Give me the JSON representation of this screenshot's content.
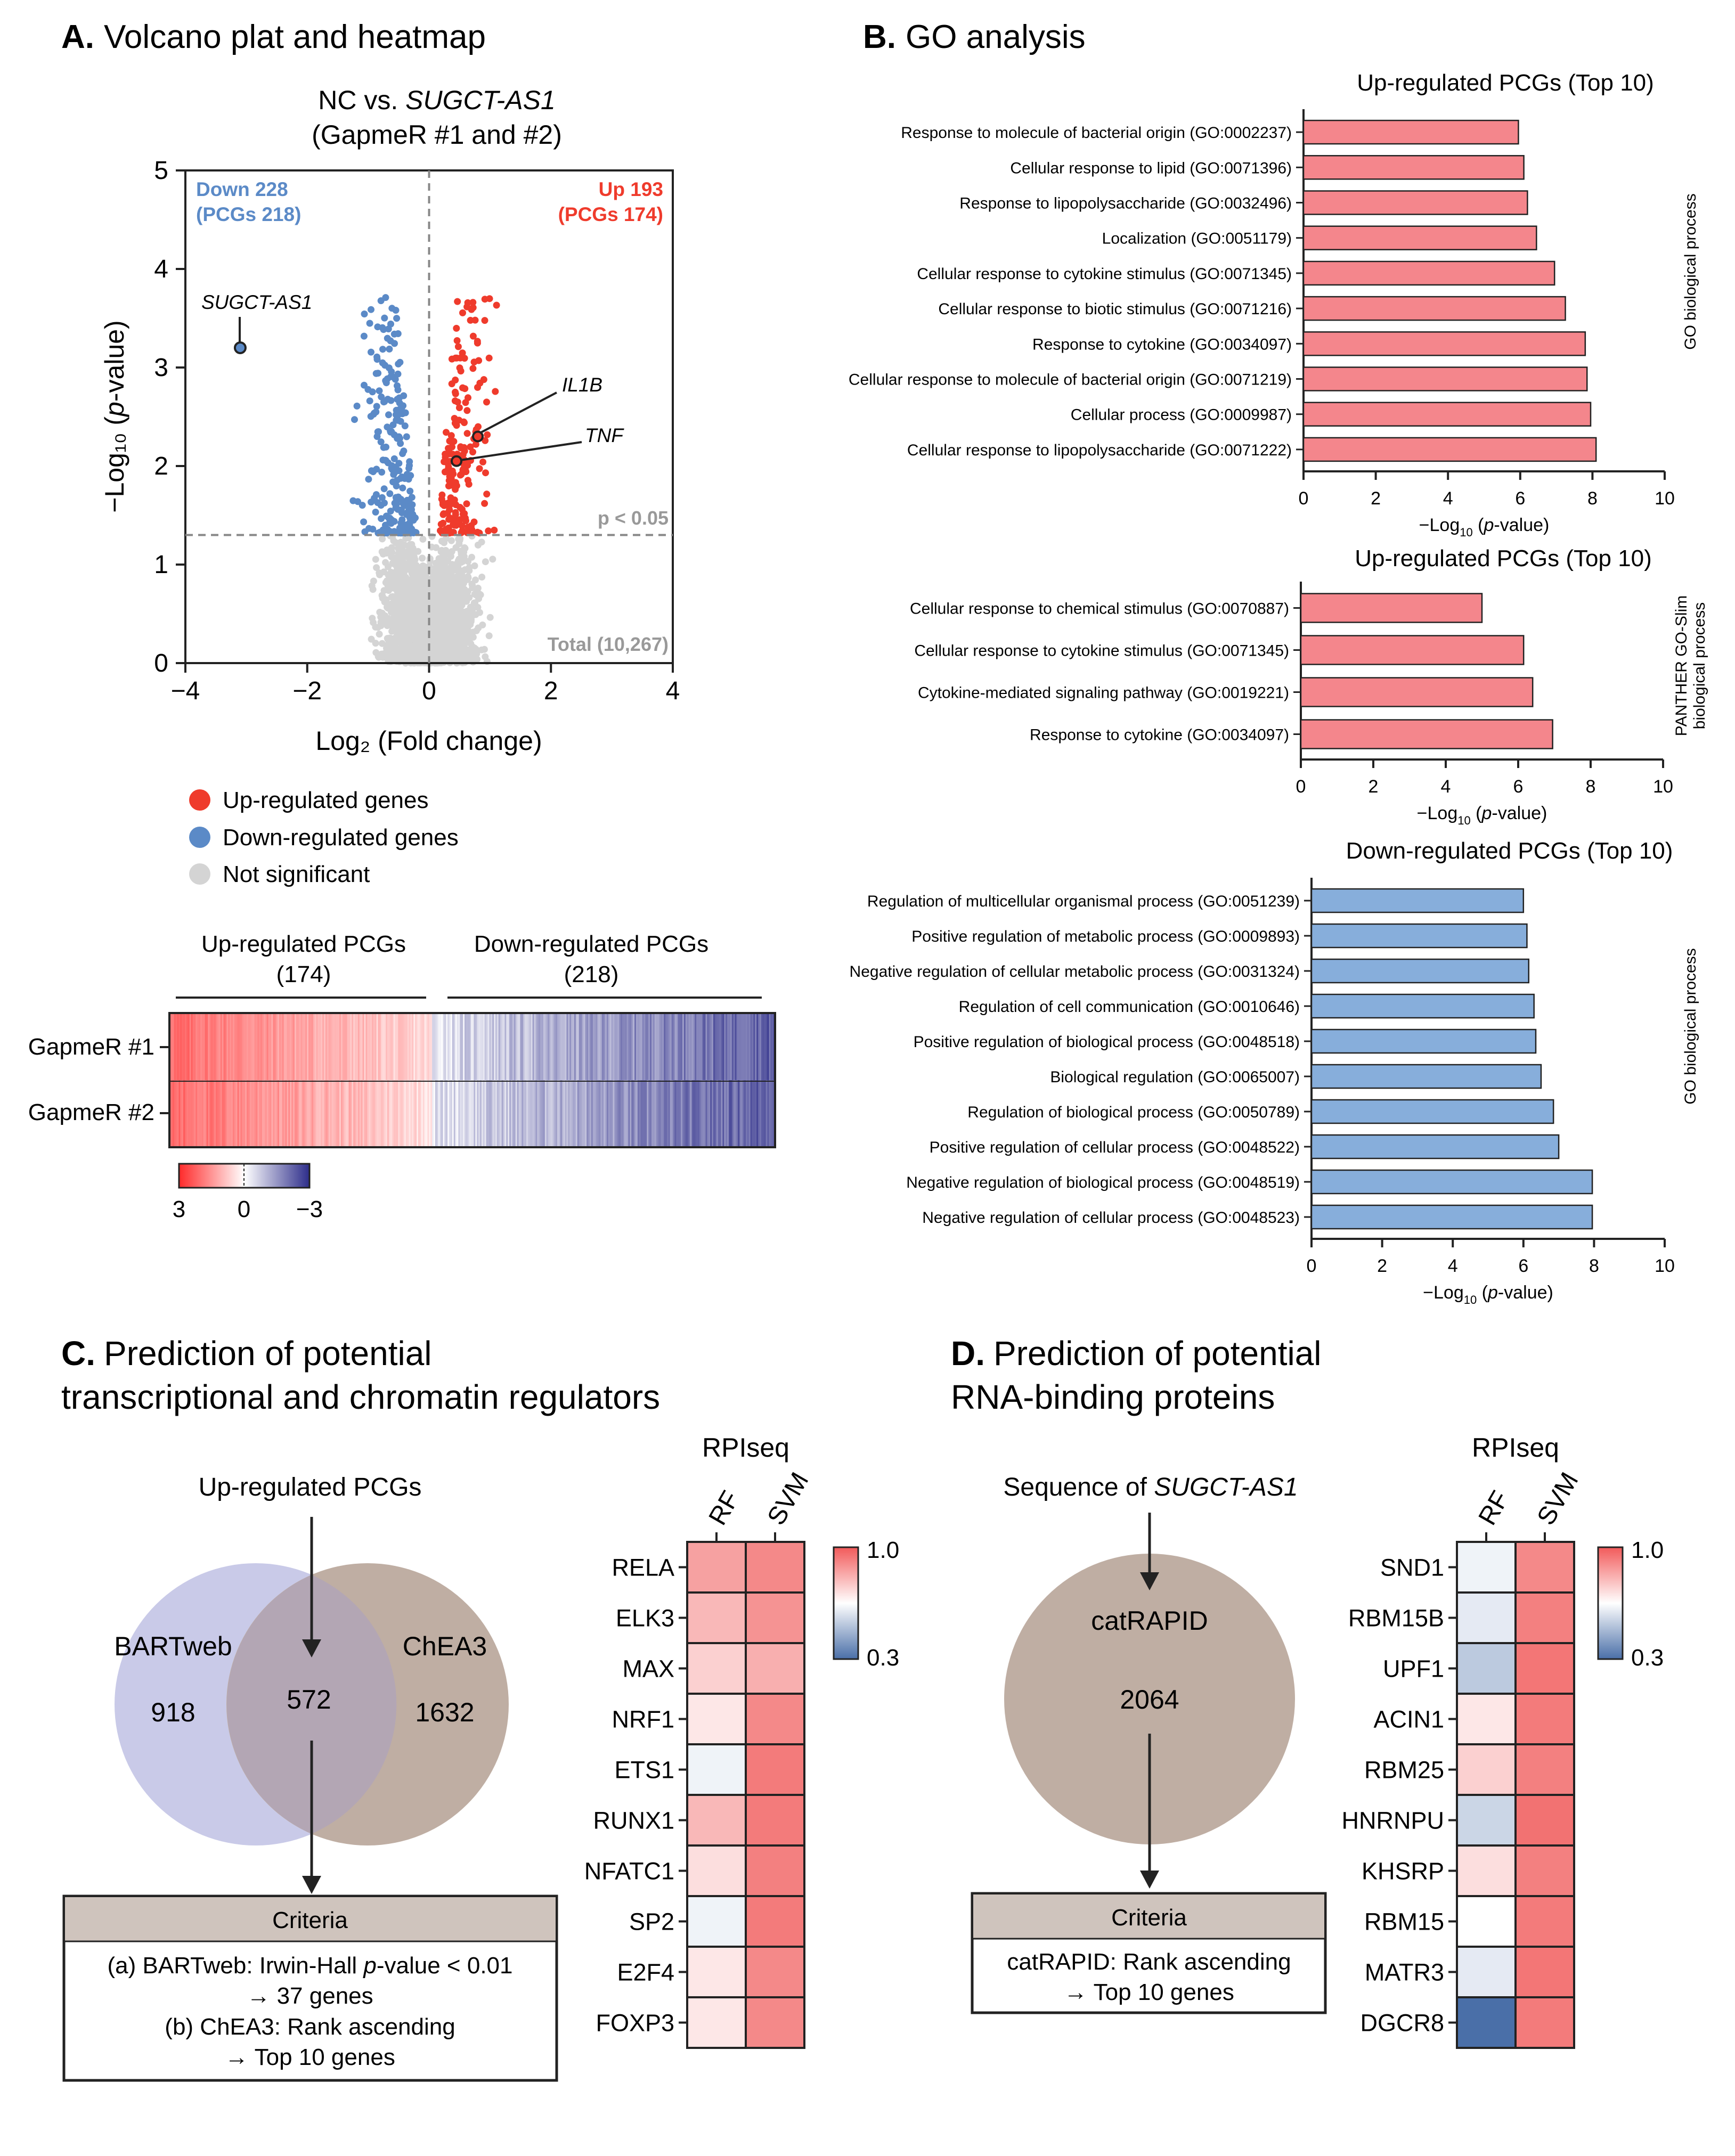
{
  "colors": {
    "up": "#ef3b2c",
    "down": "#5b8ac7",
    "ns": "#d4d4d4",
    "up_bar": "#f4868c",
    "down_bar": "#87aedb",
    "venn_left": "#c9cae8",
    "venn_right": "#bfaea3",
    "venn_mid": "#b3a6b4",
    "criteria_header": "#cfc4bd",
    "heat_high": "#f05060",
    "heat_low": "#3f3f95"
  },
  "panelA": {
    "letter": "A.",
    "title": "Volcano plat and heatmap",
    "subtitle_prefix": "NC vs. ",
    "subtitle_gene": "SUGCT-AS1",
    "subtitle_line2": "(GapmeR #1 and #2)",
    "down_label": "Down 228",
    "down_sub": "(PCGs 218)",
    "up_label": "Up 193",
    "up_sub": "(PCGs 174)",
    "p_label": "p < 0.05",
    "total_label": "Total (10,267)",
    "gene_labels": [
      "SUGCT-AS1",
      "IL1B",
      "TNF"
    ],
    "legend": [
      "Up-regulated genes",
      "Down-regulated genes",
      "Not significant"
    ],
    "heatmap": {
      "col1": "Up-regulated PCGs",
      "col1_n": "(174)",
      "col2": "Down-regulated PCGs",
      "col2_n": "(218)",
      "rows": [
        "GapmeR #1",
        "GapmeR #2"
      ],
      "scale": [
        "3",
        "0",
        "−3"
      ]
    }
  },
  "chart_data": [
    {
      "type": "scatter",
      "title": "NC vs. SUGCT-AS1 (GapmeR #1 and #2)",
      "xlabel": "Log₂ (Fold change)",
      "ylabel": "−Log₁₀ (p-value)",
      "xlim": [
        -4,
        4
      ],
      "ylim": [
        0,
        5
      ],
      "xticks": [
        "−4",
        "−2",
        "0",
        "2",
        "4"
      ],
      "yticks": [
        "0",
        "1",
        "2",
        "3",
        "4",
        "5"
      ],
      "highlighted": [
        {
          "gene": "SUGCT-AS1",
          "x": -3.1,
          "y": 3.2
        },
        {
          "gene": "IL1B",
          "x": 0.8,
          "y": 2.3
        },
        {
          "gene": "TNF",
          "x": 0.45,
          "y": 2.05
        }
      ],
      "series": [
        {
          "name": "Up-regulated genes",
          "count": 193
        },
        {
          "name": "Down-regulated genes",
          "count": 228
        },
        {
          "name": "Not significant"
        }
      ],
      "threshold": {
        "y": 1.3,
        "label": "p < 0.05"
      },
      "total": 10267
    },
    {
      "type": "bar",
      "orientation": "horizontal",
      "title": "Up-regulated PCGs (Top 10)",
      "side_label": "GO biological process",
      "xlabel": "−Log10 (p-value)",
      "xlim": [
        0,
        10
      ],
      "xticks": [
        "0",
        "2",
        "4",
        "6",
        "8",
        "10"
      ],
      "categories": [
        "Response to molecule of bacterial origin (GO:0002237)",
        "Cellular response to lipid (GO:0071396)",
        "Response to lipopolysaccharide (GO:0032496)",
        "Localization (GO:0051179)",
        "Cellular response to cytokine stimulus (GO:0071345)",
        "Cellular response to biotic stimulus (GO:0071216)",
        "Response to cytokine (GO:0034097)",
        "Cellular response to molecule of bacterial origin (GO:0071219)",
        "Cellular process (GO:0009987)",
        "Cellular response to lipopolysaccharide (GO:0071222)"
      ],
      "values": [
        5.95,
        6.1,
        6.2,
        6.45,
        6.95,
        7.25,
        7.8,
        7.85,
        7.95,
        8.1
      ]
    },
    {
      "type": "bar",
      "orientation": "horizontal",
      "title": "Up-regulated PCGs (Top 10)",
      "side_label": "PANTHER GO-Slim biological process",
      "xlabel": "−Log10 (p-value)",
      "xlim": [
        0,
        10
      ],
      "xticks": [
        "0",
        "2",
        "4",
        "6",
        "8",
        "10"
      ],
      "categories": [
        "Cellular response to chemical stimulus (GO:0070887)",
        "Cellular response to cytokine stimulus (GO:0071345)",
        "Cytokine-mediated signaling pathway (GO:0019221)",
        "Response to cytokine (GO:0034097)"
      ],
      "values": [
        5.0,
        6.15,
        6.4,
        6.95
      ]
    },
    {
      "type": "bar",
      "orientation": "horizontal",
      "title": "Down-regulated PCGs (Top 10)",
      "side_label": "GO biological process",
      "xlabel": "−Log10 (p-value)",
      "xlim": [
        0,
        10
      ],
      "xticks": [
        "0",
        "2",
        "4",
        "6",
        "8",
        "10"
      ],
      "categories": [
        "Regulation of multicellular organismal process (GO:0051239)",
        "Positive regulation of metabolic process (GO:0009893)",
        "Negative regulation of cellular metabolic process (GO:0031324)",
        "Regulation of cell communication (GO:0010646)",
        "Positive regulation of biological process (GO:0048518)",
        "Biological regulation (GO:0065007)",
        "Regulation of biological process (GO:0050789)",
        "Positive regulation of cellular process (GO:0048522)",
        "Negative regulation of biological process (GO:0048519)",
        "Negative regulation of cellular process (GO:0048523)"
      ],
      "values": [
        6.0,
        6.1,
        6.15,
        6.3,
        6.35,
        6.5,
        6.85,
        7.0,
        7.95,
        7.95
      ]
    },
    {
      "type": "heatmap",
      "title": "RPIseq",
      "panel": "C",
      "columns": [
        "RF",
        "SVM"
      ],
      "rows": [
        "RELA",
        "ELK3",
        "MAX",
        "NRF1",
        "ETS1",
        "RUNX1",
        "NFATC1",
        "SP2",
        "E2F4",
        "FOXP3"
      ],
      "values": [
        [
          0.85,
          0.9
        ],
        [
          0.8,
          0.88
        ],
        [
          0.75,
          0.82
        ],
        [
          0.7,
          0.9
        ],
        [
          0.62,
          0.93
        ],
        [
          0.8,
          0.93
        ],
        [
          0.72,
          0.92
        ],
        [
          0.62,
          0.93
        ],
        [
          0.7,
          0.9
        ],
        [
          0.7,
          0.9
        ]
      ],
      "scale": {
        "max": "1.0",
        "min": "0.3"
      }
    },
    {
      "type": "heatmap",
      "title": "RPIseq",
      "panel": "D",
      "columns": [
        "RF",
        "SVM"
      ],
      "rows": [
        "SND1",
        "RBM15B",
        "UPF1",
        "ACIN1",
        "RBM25",
        "HNRNPU",
        "KHSRP",
        "RBM15",
        "MATR3",
        "DGCR8"
      ],
      "values": [
        [
          0.62,
          0.9
        ],
        [
          0.6,
          0.92
        ],
        [
          0.52,
          0.94
        ],
        [
          0.7,
          0.93
        ],
        [
          0.75,
          0.92
        ],
        [
          0.55,
          0.95
        ],
        [
          0.72,
          0.92
        ],
        [
          0.65,
          0.93
        ],
        [
          0.6,
          0.94
        ],
        [
          0.3,
          0.93
        ]
      ],
      "scale": {
        "max": "1.0",
        "min": "0.3"
      }
    }
  ],
  "panelB": {
    "letter": "B.",
    "title": "GO analysis",
    "xlabel_prefix": "−Log",
    "xlabel_sub": "10",
    "xlabel_suffix_open": " (",
    "xlabel_p": "p",
    "xlabel_suffix": "-value)"
  },
  "panelC": {
    "letter": "C.",
    "title_line1": "Prediction of potential",
    "title_line2": "transcriptional and chromatin regulators",
    "input_label": "Up-regulated PCGs",
    "venn_left_label": "BARTweb",
    "venn_right_label": "ChEA3",
    "venn_left_n": "918",
    "venn_mid_n": "572",
    "venn_right_n": "1632",
    "criteria_title": "Criteria",
    "criteria_a1": "(a) BARTweb: Irwin-Hall ",
    "criteria_a_p": "p",
    "criteria_a2": "-value < 0.01",
    "criteria_a3": "→ 37 genes",
    "criteria_b1": "(b) ChEA3: Rank ascending",
    "criteria_b2": "→ Top 10 genes"
  },
  "panelD": {
    "letter": "D.",
    "title_line1": "Prediction of potential",
    "title_line2": "RNA-binding proteins",
    "seq_prefix": "Sequence of ",
    "seq_gene": "SUGCT-AS1",
    "circle_label": "catRAPID",
    "circle_n": "2064",
    "criteria_title": "Criteria",
    "criteria_1": "catRAPID: Rank ascending",
    "criteria_2": "→ Top 10 genes"
  }
}
